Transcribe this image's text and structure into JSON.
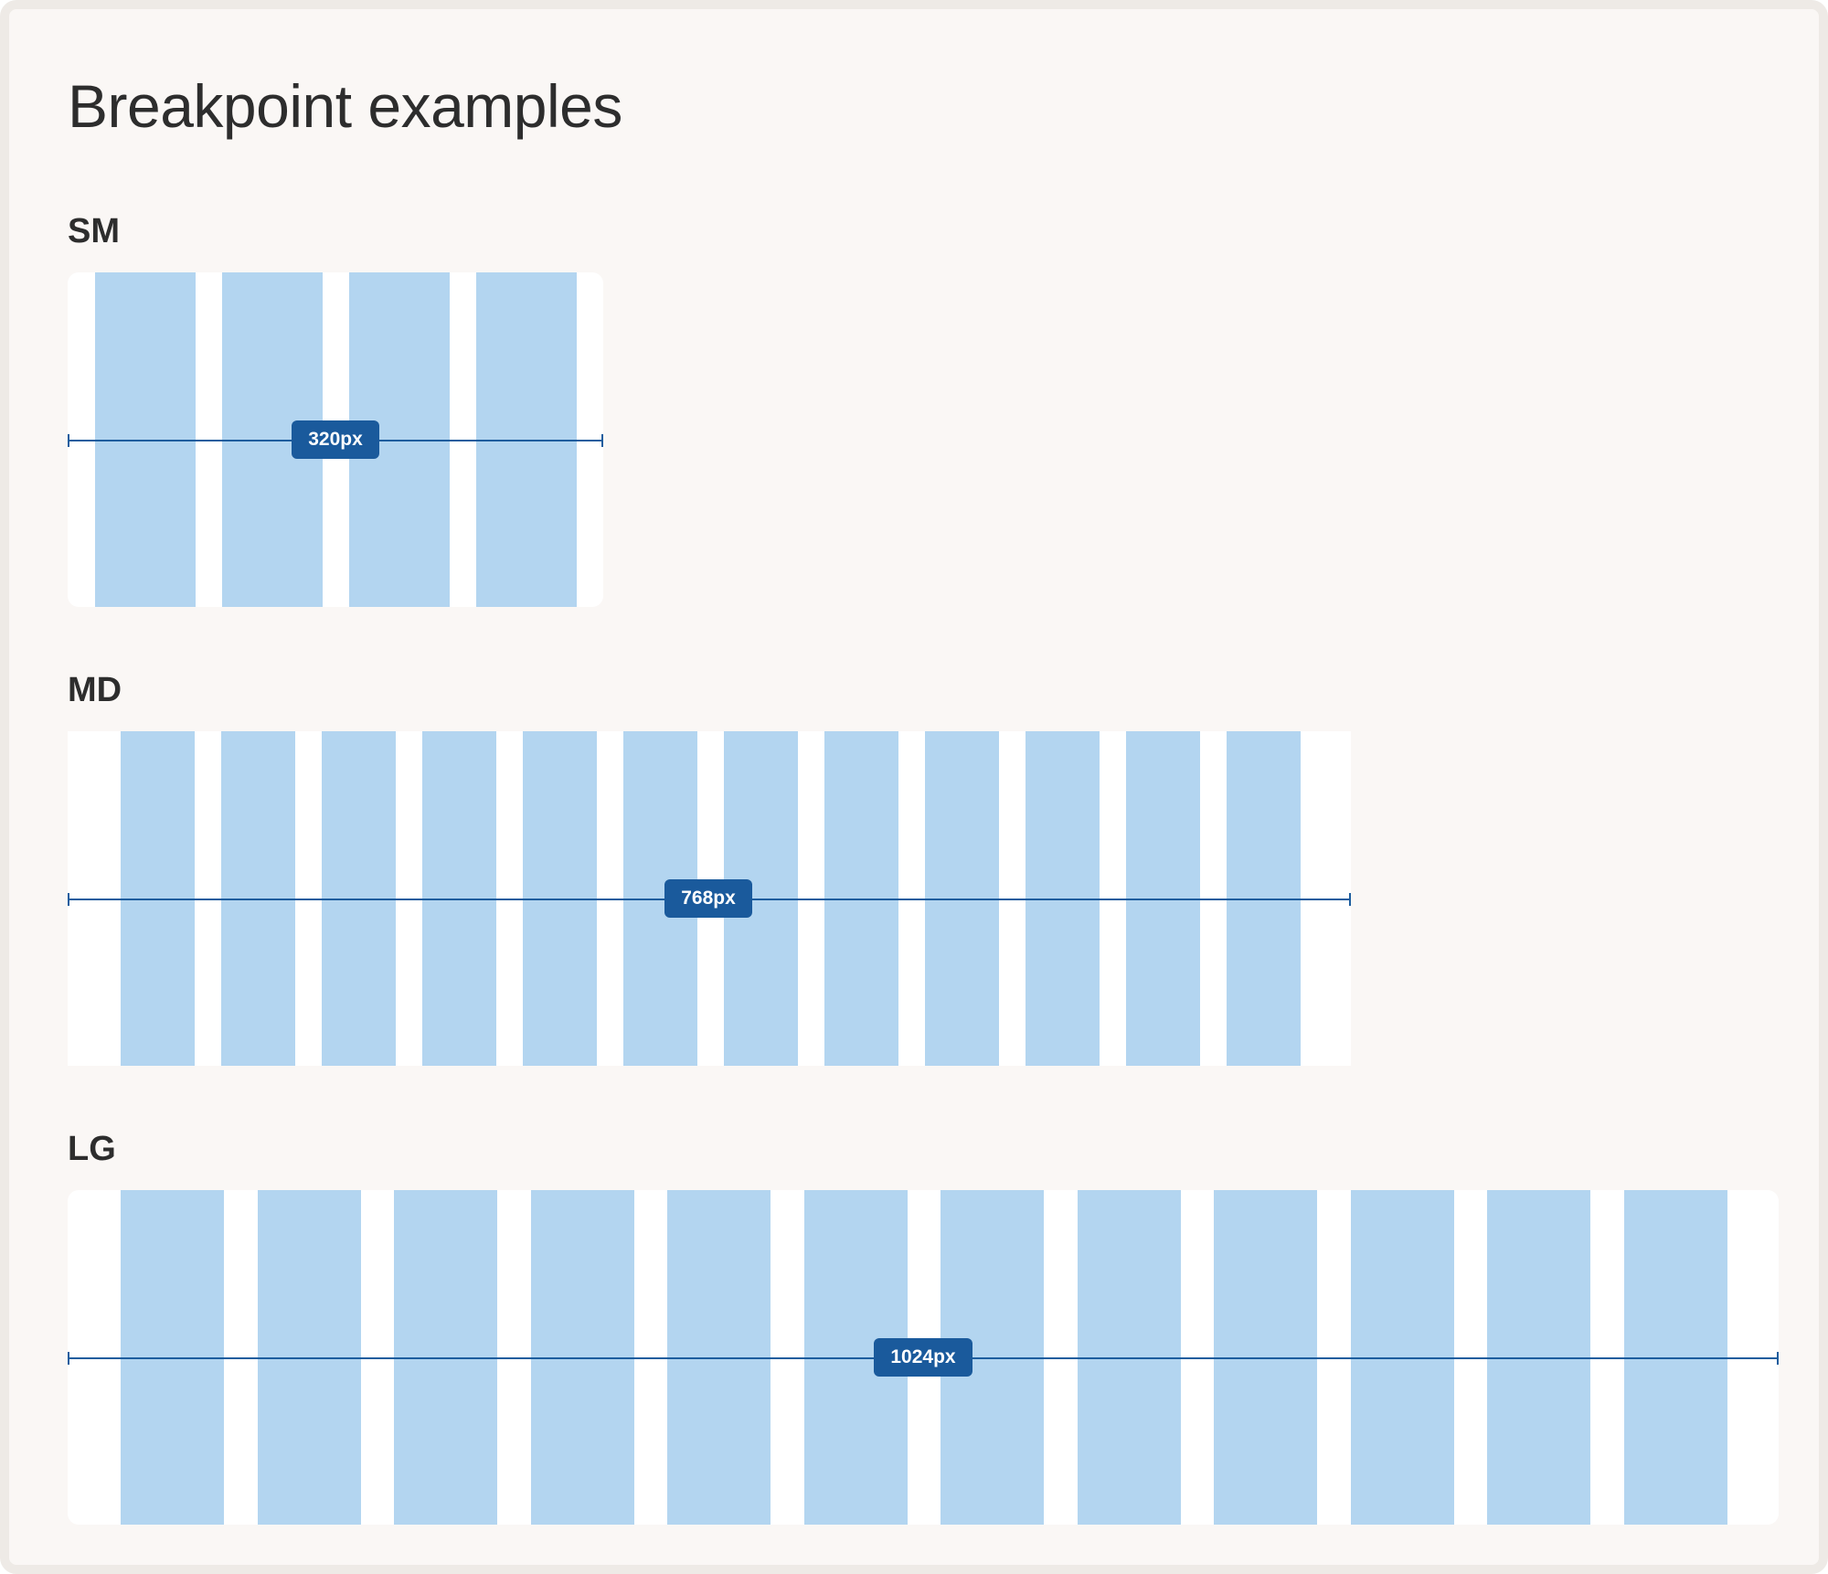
{
  "title": "Breakpoint examples",
  "breakpoints": [
    {
      "key": "sm",
      "label": "SM",
      "width_label": "320px",
      "columns": 4
    },
    {
      "key": "md",
      "label": "MD",
      "width_label": "768px",
      "columns": 12
    },
    {
      "key": "lg",
      "label": "LG",
      "width_label": "1024px",
      "columns": 12
    }
  ],
  "colors": {
    "background": "#faf7f5",
    "column": "#b3d5f0",
    "measure": "#1a5a9c",
    "text": "#2d2d2d"
  }
}
